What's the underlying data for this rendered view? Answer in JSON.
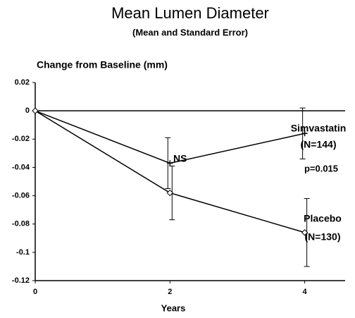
{
  "chart_data": {
    "type": "line",
    "title": "Mean Lumen Diameter",
    "subtitle": "(Mean and Standard Error)",
    "y_label": "Change from Baseline (mm)",
    "x_label": "Years",
    "x": [
      0,
      2,
      4
    ],
    "series": [
      {
        "name": "Simvastatin",
        "color": "#000000",
        "marker": "x",
        "values": [
          0,
          -0.037,
          -0.016
        ],
        "errors": [
          0,
          0.018,
          0.018
        ],
        "note": "(N=144)"
      },
      {
        "name": "Placebo",
        "color": "#000000",
        "marker": "diamond",
        "values": [
          0,
          -0.058,
          -0.086
        ],
        "errors": [
          0,
          0.019,
          0.024
        ],
        "note": "(N=130)"
      }
    ],
    "annotations": [
      "NS",
      "p=0.015"
    ],
    "xlim": [
      0,
      4.6
    ],
    "xticks": [
      0,
      2,
      4
    ],
    "ylim": [
      -0.12,
      0.02
    ],
    "yticks": [
      0.02,
      0,
      -0.02,
      -0.04,
      -0.06,
      -0.08,
      -0.1,
      -0.12
    ],
    "reference_line": 0
  }
}
